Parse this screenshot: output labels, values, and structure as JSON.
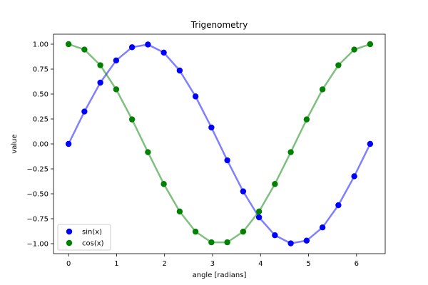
{
  "chart_data": {
    "type": "line",
    "title": "Trigenometry",
    "xlabel": "angle [radians]",
    "ylabel": "value",
    "xlim": [
      -0.314,
      6.597
    ],
    "ylim": [
      -1.1,
      1.1
    ],
    "xticks": [
      0,
      1,
      2,
      3,
      4,
      5,
      6
    ],
    "yticks": [
      -1.0,
      -0.75,
      -0.5,
      -0.25,
      0.0,
      0.25,
      0.5,
      0.75,
      1.0
    ],
    "xtick_labels": [
      "0",
      "1",
      "2",
      "3",
      "4",
      "5",
      "6"
    ],
    "ytick_labels": [
      "−1.00",
      "−0.75",
      "−0.50",
      "−0.25",
      "0.00",
      "0.25",
      "0.50",
      "0.75",
      "1.00"
    ],
    "grid": false,
    "legend_position": "lower-left",
    "x": [
      0.0,
      0.3307,
      0.6614,
      0.9921,
      1.3228,
      1.6535,
      1.9842,
      2.3149,
      2.6456,
      2.9762,
      3.3069,
      3.6376,
      3.9683,
      4.299,
      4.6297,
      4.9604,
      5.2911,
      5.6218,
      5.9525,
      6.2832
    ],
    "series": [
      {
        "name": "sin(x)",
        "color": "#0000ff",
        "values": [
          0.0,
          0.3247,
          0.6142,
          0.8372,
          0.9694,
          0.9966,
          0.9158,
          0.7357,
          0.4759,
          0.1646,
          -0.1646,
          -0.4759,
          -0.7357,
          -0.9158,
          -0.9966,
          -0.9694,
          -0.8372,
          -0.6142,
          -0.3247,
          0.0
        ]
      },
      {
        "name": "cos(x)",
        "color": "#008000",
        "values": [
          1.0,
          0.9458,
          0.7891,
          0.5469,
          0.2455,
          -0.0826,
          -0.4017,
          -0.6773,
          -0.8795,
          -0.9864,
          -0.9864,
          -0.8795,
          -0.6773,
          -0.4017,
          -0.0826,
          0.2455,
          0.5469,
          0.7891,
          0.9458,
          1.0
        ]
      }
    ]
  }
}
